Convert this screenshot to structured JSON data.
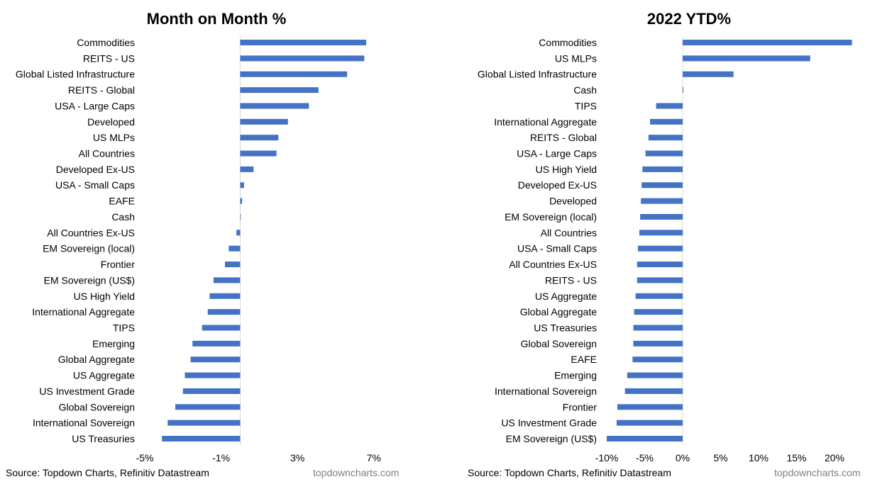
{
  "charts": [
    {
      "title": "Month on Month %",
      "source": "Source: Topdown Charts, Refinitiv Datastream",
      "credit": "topdowncharts.com"
    },
    {
      "title": "2022 YTD%",
      "source": "Source: Topdown Charts, Refinitiv Datastream",
      "credit": "topdowncharts.com"
    }
  ],
  "chart_data": [
    {
      "type": "bar",
      "orientation": "horizontal",
      "title": "Month on Month %",
      "xlabel": "",
      "ylabel": "",
      "xlim": [
        -5,
        9
      ],
      "x_ticks": [
        -5,
        -1,
        3,
        7
      ],
      "x_tick_labels": [
        "-5%",
        "-1%",
        "3%",
        "7%"
      ],
      "grid": false,
      "legend": "none",
      "bar_color": "#4472C4",
      "categories": [
        "Commodities",
        "REITS - US",
        "Global Listed Infrastructure",
        "REITS - Global",
        "USA - Large Caps",
        "Developed",
        "US MLPs",
        "All Countries",
        "Developed Ex-US",
        "USA - Small Caps",
        "EAFE",
        "Cash",
        "All Countries Ex-US",
        "EM Sovereign (local)",
        "Frontier",
        "EM Sovereign (US$)",
        "US High Yield",
        "International Aggregate",
        "TIPS",
        "Emerging",
        "Global Aggregate",
        "US Aggregate",
        "US Investment Grade",
        "Global Sovereign",
        "International Sovereign",
        "US Treasuries"
      ],
      "values": [
        6.6,
        6.5,
        5.6,
        4.1,
        3.6,
        2.5,
        2.0,
        1.9,
        0.7,
        0.2,
        0.1,
        0.0,
        -0.2,
        -0.6,
        -0.8,
        -1.4,
        -1.6,
        -1.7,
        -2.0,
        -2.5,
        -2.6,
        -2.9,
        -3.0,
        -3.4,
        -3.8,
        -4.1
      ]
    },
    {
      "type": "bar",
      "orientation": "horizontal",
      "title": "2022 YTD%",
      "xlabel": "",
      "ylabel": "",
      "xlim": [
        -10,
        25
      ],
      "x_ticks": [
        -10,
        -5,
        0,
        5,
        10,
        15,
        20
      ],
      "x_tick_labels": [
        "-10%",
        "-5%",
        "0%",
        "5%",
        "10%",
        "15%",
        "20%"
      ],
      "grid": false,
      "legend": "none",
      "bar_color": "#4472C4",
      "categories": [
        "Commodities",
        "US MLPs",
        "Global Listed Infrastructure",
        "Cash",
        "TIPS",
        "International Aggregate",
        "REITS - Global",
        "USA - Large Caps",
        "US High Yield",
        "Developed Ex-US",
        "Developed",
        "EM Sovereign (local)",
        "All Countries",
        "USA - Small Caps",
        "All Countries Ex-US",
        "REITS - US",
        "US Aggregate",
        "Global Aggregate",
        "US Treasuries",
        "Global Sovereign",
        "EAFE",
        "Emerging",
        "International Sovereign",
        "Frontier",
        "US Investment Grade",
        "EM Sovereign (US$)"
      ],
      "values": [
        22.3,
        16.8,
        6.7,
        0.1,
        -3.5,
        -4.3,
        -4.5,
        -4.9,
        -5.3,
        -5.4,
        -5.5,
        -5.6,
        -5.7,
        -5.9,
        -6.0,
        -6.0,
        -6.2,
        -6.4,
        -6.5,
        -6.5,
        -6.6,
        -7.3,
        -7.6,
        -8.6,
        -8.7,
        -10.0
      ]
    }
  ]
}
